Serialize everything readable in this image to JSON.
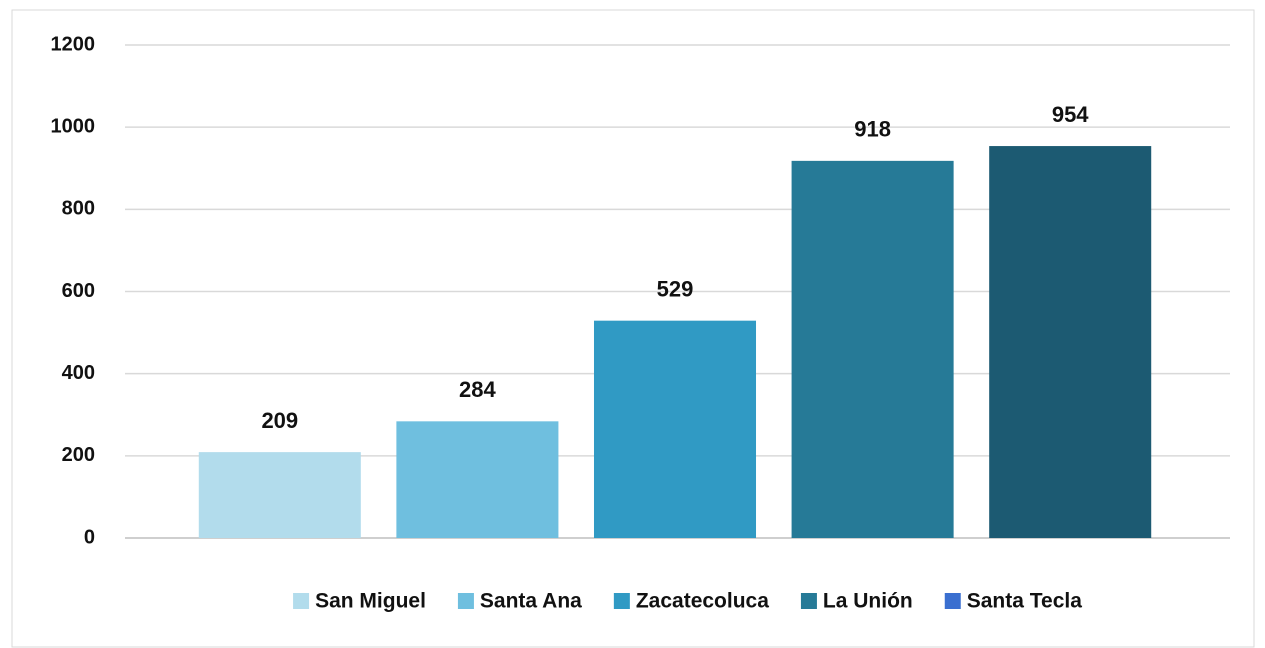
{
  "chart_data": {
    "type": "bar",
    "series": [
      {
        "name": "San Miguel",
        "color": "#b2dcec",
        "values": [
          209
        ]
      },
      {
        "name": "Santa Ana",
        "color": "#6fbfdf",
        "values": [
          284
        ]
      },
      {
        "name": "Zacatecoluca",
        "color": "#309ac4",
        "values": [
          529
        ]
      },
      {
        "name": "La Unión",
        "color": "#267a97",
        "values": [
          918
        ]
      },
      {
        "name": "Santa Tecla",
        "color": "#1c5a72",
        "legend_color": "#3a6fd0",
        "values": [
          954
        ]
      }
    ],
    "ylim": [
      0,
      1200
    ],
    "yticks": [
      0,
      200,
      400,
      600,
      800,
      1000,
      1200
    ],
    "grid": true,
    "legend": "bottom"
  }
}
